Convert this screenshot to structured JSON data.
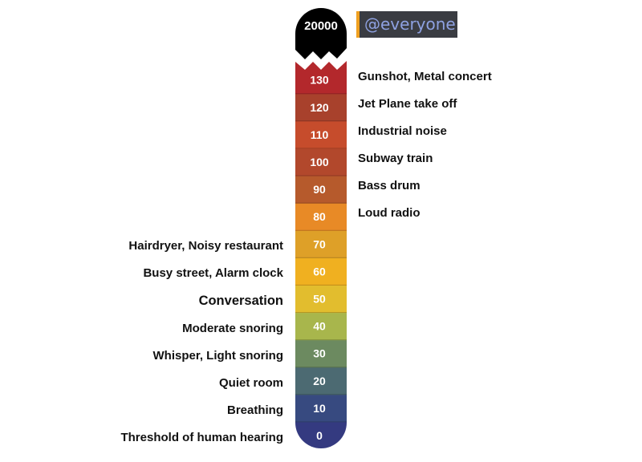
{
  "top_value": "20000",
  "mention": "@everyone",
  "colors": {
    "top_cap": "#000000",
    "bands": [
      "#343a80",
      "#374a80",
      "#4c6a72",
      "#6c8a60",
      "#a8b64c",
      "#e2bd2e",
      "#f0b020",
      "#dea028",
      "#e88a26",
      "#b65a2c",
      "#b2482c",
      "#c64c2c",
      "#a8412c",
      "#b3282c"
    ]
  },
  "scale": {
    "levels": [
      {
        "value": "0",
        "label": "Threshold of human hearing",
        "side": "left"
      },
      {
        "value": "10",
        "label": "Breathing",
        "side": "left"
      },
      {
        "value": "20",
        "label": "Quiet room",
        "side": "left"
      },
      {
        "value": "30",
        "label": "Whisper, Light snoring",
        "side": "left"
      },
      {
        "value": "40",
        "label": "Moderate snoring",
        "side": "left"
      },
      {
        "value": "50",
        "label": "Conversation",
        "side": "left"
      },
      {
        "value": "60",
        "label": "Busy street, Alarm clock",
        "side": "left"
      },
      {
        "value": "70",
        "label": "Hairdryer, Noisy restaurant",
        "side": "left"
      },
      {
        "value": "80",
        "label": "Loud radio",
        "side": "right"
      },
      {
        "value": "90",
        "label": "Bass drum",
        "side": "right"
      },
      {
        "value": "100",
        "label": "Subway train",
        "side": "right"
      },
      {
        "value": "110",
        "label": "Industrial noise",
        "side": "right"
      },
      {
        "value": "120",
        "label": "Jet Plane take off",
        "side": "right"
      },
      {
        "value": "130",
        "label": "Gunshot, Metal concert",
        "side": "right"
      }
    ]
  }
}
